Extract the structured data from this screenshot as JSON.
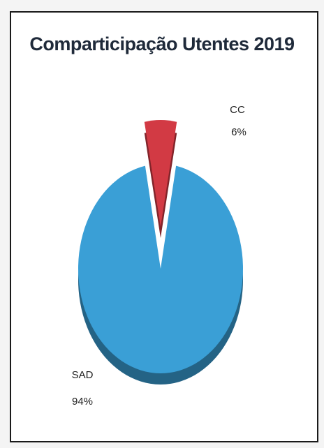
{
  "chart_data": {
    "type": "pie",
    "title": "Comparticipação Utentes 2019",
    "slices": [
      {
        "label": "SAD",
        "value": 94,
        "value_label": "94%",
        "color": "#3a9fd6",
        "exploded": false
      },
      {
        "label": "CC",
        "value": 6,
        "value_label": "6%",
        "color": "#d23a44",
        "exploded": true
      }
    ],
    "style": "3d",
    "legend": "none"
  }
}
